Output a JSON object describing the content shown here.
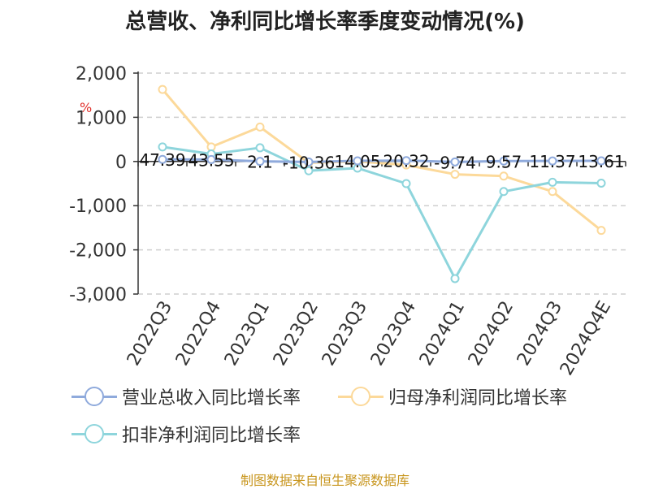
{
  "title": "总营收、净利同比增长率季度变动情况(%)",
  "source": "制图数据来自恒生聚源数据库",
  "chart_data": {
    "type": "line",
    "categories": [
      "2022Q3",
      "2022Q4",
      "2023Q1",
      "2023Q2",
      "2023Q3",
      "2023Q4",
      "2024Q1",
      "2024Q2",
      "2024Q3",
      "2024Q4E"
    ],
    "ylabel": "%",
    "ylim": [
      -3000,
      2000
    ],
    "yticks": [
      2000,
      1000,
      0,
      -1000,
      -2000,
      -3000
    ],
    "ytick_labels": [
      "2,000",
      "1,000",
      "0",
      "-1,000",
      "-2,000",
      "-3,000"
    ],
    "grid": true,
    "legend_position": "bottom",
    "series": [
      {
        "name": "营业总收入同比增长率",
        "color": "#8faadc",
        "values": [
          47.39,
          43.55,
          2.1,
          -10.36,
          14.05,
          20.32,
          -9.74,
          9.57,
          11.37,
          13.61
        ],
        "labels": [
          "47.39",
          "43.55",
          "2.1",
          "-10.36",
          "14.05",
          "20.32",
          "-9.74",
          "9.57",
          "11.37",
          "13.61"
        ]
      },
      {
        "name": "归母净利润同比增长率",
        "color": "#fcd99a",
        "values": [
          1630,
          330,
          780,
          -30,
          0,
          -80,
          -290,
          -330,
          -680,
          -1560
        ]
      },
      {
        "name": "扣非净利润同比增长率",
        "color": "#8ed5dc",
        "values": [
          330,
          170,
          310,
          -210,
          -150,
          -500,
          -2650,
          -680,
          -470,
          -490
        ]
      }
    ]
  }
}
